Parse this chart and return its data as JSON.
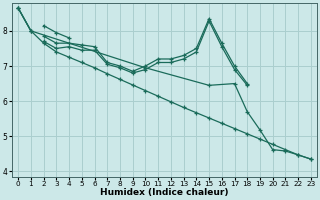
{
  "xlabel": "Humidex (Indice chaleur)",
  "background_color": "#cce8e8",
  "grid_color": "#aacece",
  "line_color": "#1a6b5a",
  "xlim": [
    -0.5,
    23.5
  ],
  "ylim": [
    3.85,
    8.8
  ],
  "yticks": [
    4,
    5,
    6,
    7,
    8
  ],
  "xticks": [
    0,
    1,
    2,
    3,
    4,
    5,
    6,
    7,
    8,
    9,
    10,
    11,
    12,
    13,
    14,
    15,
    16,
    17,
    18,
    19,
    20,
    21,
    22,
    23
  ],
  "series": [
    {
      "x": [
        0,
        1
      ],
      "y": [
        8.65,
        8.0
      ]
    },
    {
      "comment": "second cluster: 2->8.15, 3->7.95, 4->7.8",
      "x": [
        2,
        3,
        4
      ],
      "y": [
        8.15,
        7.95,
        7.8
      ]
    },
    {
      "comment": "main curve with peak: 2->7.85, 3->7.65, 4->7.65, 5->7.6, 6->7.55, 7->7.1, 8->7.0, 9->6.85, 10->7.0, 11->7.2, 12->7.2, 13->7.3, 14->7.5, 15->8.35, 16->7.65, 17->7.0, 18->6.5",
      "x": [
        2,
        3,
        4,
        5,
        6,
        7,
        8,
        9,
        10,
        11,
        12,
        13,
        14,
        15,
        16,
        17,
        18
      ],
      "y": [
        7.85,
        7.65,
        7.65,
        7.6,
        7.55,
        7.1,
        7.0,
        6.85,
        7.0,
        7.2,
        7.2,
        7.3,
        7.5,
        8.35,
        7.65,
        7.0,
        6.5
      ]
    },
    {
      "comment": "parallel curve slightly below the main curve: 2->7.7, 3->7.5, 4->7.55, 5->7.45, 6->7.45, 7->7.05, 8->6.95, 9->6.8, 10->6.9, 11->7.1, 12->7.1, 13->7.2, 14->7.4, 15->8.28, 16->7.55, 17->6.9, 18->6.45",
      "x": [
        2,
        3,
        4,
        5,
        6,
        7,
        8,
        9,
        10,
        11,
        12,
        13,
        14,
        15,
        16,
        17,
        18
      ],
      "y": [
        7.7,
        7.5,
        7.55,
        7.45,
        7.45,
        7.05,
        6.95,
        6.8,
        6.9,
        7.1,
        7.1,
        7.2,
        7.4,
        8.28,
        7.55,
        6.9,
        6.45
      ]
    },
    {
      "x": [
        0,
        1,
        2,
        3,
        4,
        5,
        6,
        7,
        8,
        9,
        10,
        11,
        12,
        13,
        14,
        15,
        16,
        17,
        18,
        19,
        20,
        21,
        22,
        23
      ],
      "y": [
        8.65,
        8.0,
        7.65,
        7.4,
        7.25,
        7.1,
        6.95,
        6.78,
        6.62,
        6.46,
        6.3,
        6.14,
        5.98,
        5.82,
        5.67,
        5.52,
        5.37,
        5.22,
        5.07,
        4.92,
        4.77,
        4.62,
        4.47,
        4.35
      ]
    },
    {
      "x": [
        0,
        1,
        10,
        15,
        17,
        18,
        19,
        20,
        21,
        22,
        23
      ],
      "y": [
        8.65,
        8.0,
        6.95,
        6.45,
        6.5,
        5.7,
        5.18,
        4.62,
        4.58,
        4.47,
        4.35
      ]
    }
  ]
}
